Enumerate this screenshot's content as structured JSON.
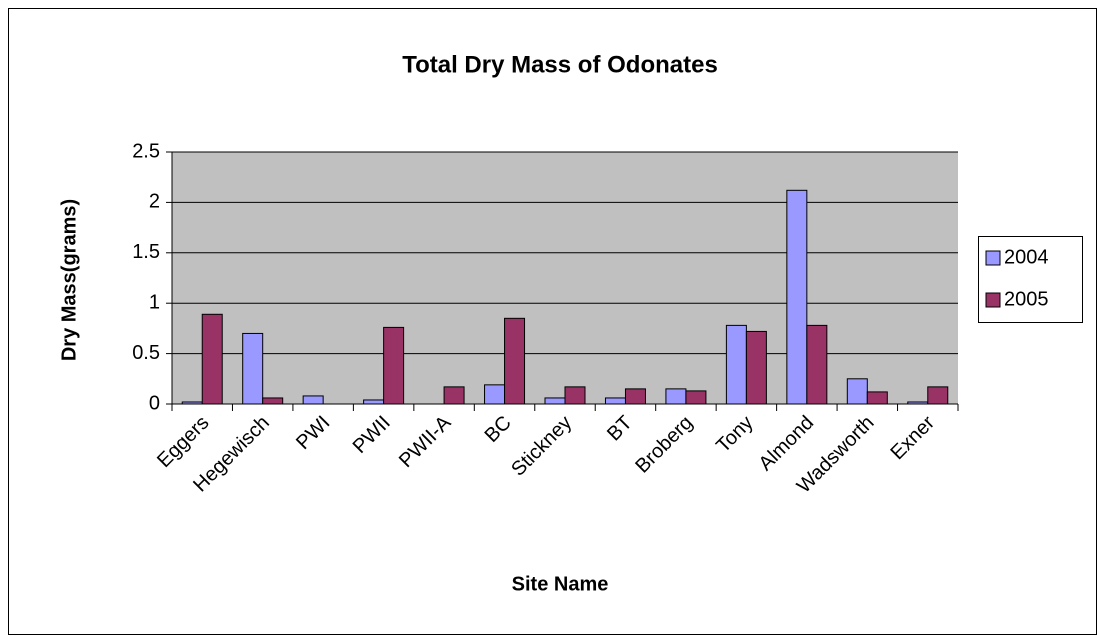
{
  "chart_data": {
    "type": "bar",
    "title": "Total Dry Mass of Odonates",
    "x_label": "Site Name",
    "y_label": "Dry Mass(grams)",
    "categories": [
      "Eggers",
      "Hegewisch",
      "PWI",
      "PWII",
      "PWII-A",
      "BC",
      "Stickney",
      "BT",
      "Broberg",
      "Tony",
      "Almond",
      "Wadsworth",
      "Exner"
    ],
    "series": [
      {
        "name": "2004",
        "color": "#9999ff",
        "values": [
          0.02,
          0.7,
          0.08,
          0.04,
          0,
          0.19,
          0.06,
          0.06,
          0.15,
          0.78,
          2.12,
          0.25,
          0.02
        ]
      },
      {
        "name": "2005",
        "color": "#993366",
        "values": [
          0.89,
          0.06,
          0,
          0.76,
          0.17,
          0.85,
          0.17,
          0.15,
          0.13,
          0.72,
          0.78,
          0.12,
          0.17
        ]
      }
    ],
    "ylim": [
      0,
      2.5
    ],
    "yticks": [
      0,
      0.5,
      1,
      1.5,
      2,
      2.5
    ],
    "grid": true,
    "legend": "right"
  }
}
